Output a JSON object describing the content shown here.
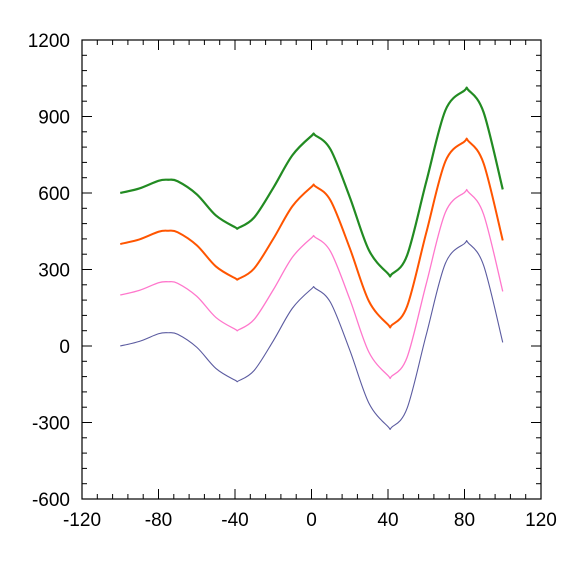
{
  "chart_data": {
    "type": "line",
    "title": "",
    "xlabel": "",
    "ylabel": "",
    "xlim": [
      -120,
      120
    ],
    "ylim": [
      -600,
      1200
    ],
    "x_ticks": [
      -120,
      -80,
      -40,
      0,
      40,
      80,
      120
    ],
    "y_ticks": [
      -600,
      -300,
      0,
      300,
      600,
      900,
      1200
    ],
    "x_tick_labels": [
      "-120",
      "-80",
      "-40",
      "0",
      "40",
      "80",
      "120"
    ],
    "y_tick_labels": [
      "-600",
      "-300",
      "0",
      "300",
      "600",
      "900",
      "1200"
    ],
    "grid": false,
    "x": [
      -100,
      -90,
      -80,
      -75,
      -70,
      -60,
      -50,
      -40,
      -38,
      -30,
      -20,
      -10,
      0,
      2,
      10,
      20,
      30,
      40,
      42,
      50,
      60,
      70,
      80,
      82,
      90,
      100
    ],
    "series": [
      {
        "color": "#5b5ba0",
        "values": [
          0,
          18,
          48,
          52,
          46,
          -5,
          -88,
          -134,
          -136,
          -96,
          20,
          148,
          224,
          226,
          170,
          -16,
          -224,
          -316,
          -318,
          -244,
          44,
          324,
          402,
          404,
          316,
          14
        ]
      },
      {
        "color": "#ff77cc",
        "values": [
          200,
          218,
          248,
          252,
          246,
          195,
          112,
          66,
          64,
          104,
          220,
          348,
          424,
          426,
          370,
          184,
          -24,
          -116,
          -118,
          -44,
          244,
          524,
          602,
          604,
          516,
          214
        ]
      },
      {
        "color": "#ff5500",
        "values": [
          400,
          418,
          448,
          452,
          446,
          395,
          312,
          266,
          264,
          304,
          420,
          548,
          624,
          626,
          570,
          384,
          176,
          84,
          82,
          156,
          444,
          724,
          802,
          804,
          716,
          414
        ]
      },
      {
        "color": "#228b22",
        "values": [
          600,
          618,
          648,
          652,
          646,
          595,
          512,
          466,
          464,
          504,
          620,
          748,
          824,
          826,
          770,
          584,
          376,
          284,
          282,
          356,
          644,
          924,
          1002,
          1004,
          916,
          614
        ]
      }
    ]
  }
}
